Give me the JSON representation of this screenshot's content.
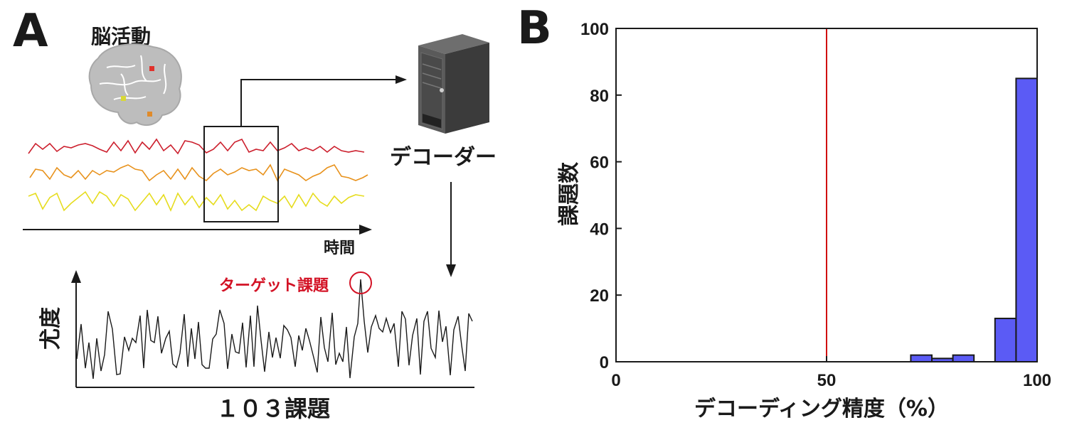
{
  "panel_a": {
    "label": "A",
    "brain_label": "脳活動",
    "time_label": "時間",
    "decoder_label": "デコーダー",
    "target_label": "ターゲット課題",
    "ylabel": "尤度",
    "xlabel": "１０３課題",
    "colors": {
      "red": "#cc1f2d",
      "orange": "#e8921c",
      "yellow": "#e6dc1e",
      "target": "#d31225"
    },
    "icons": [
      "brain-icon",
      "computer-tower-icon"
    ]
  },
  "panel_b": {
    "label": "B",
    "colors": {
      "bar": "#5b5bf5",
      "chance_line": "#d01010"
    }
  },
  "chart_data": {
    "type": "bar",
    "title": "",
    "xlabel": "デコーディング精度（%）",
    "ylabel": "課題数",
    "xlim": [
      0,
      100
    ],
    "ylim": [
      0,
      100
    ],
    "xticks": [
      "0",
      "50",
      "100"
    ],
    "yticks": [
      "0",
      "20",
      "40",
      "60",
      "80",
      "100"
    ],
    "bin_edges": [
      70,
      75,
      80,
      85,
      90,
      95,
      100
    ],
    "values": [
      2,
      1,
      2,
      0,
      13,
      85
    ],
    "reference_line": {
      "x": 50,
      "color": "#d01010"
    }
  }
}
